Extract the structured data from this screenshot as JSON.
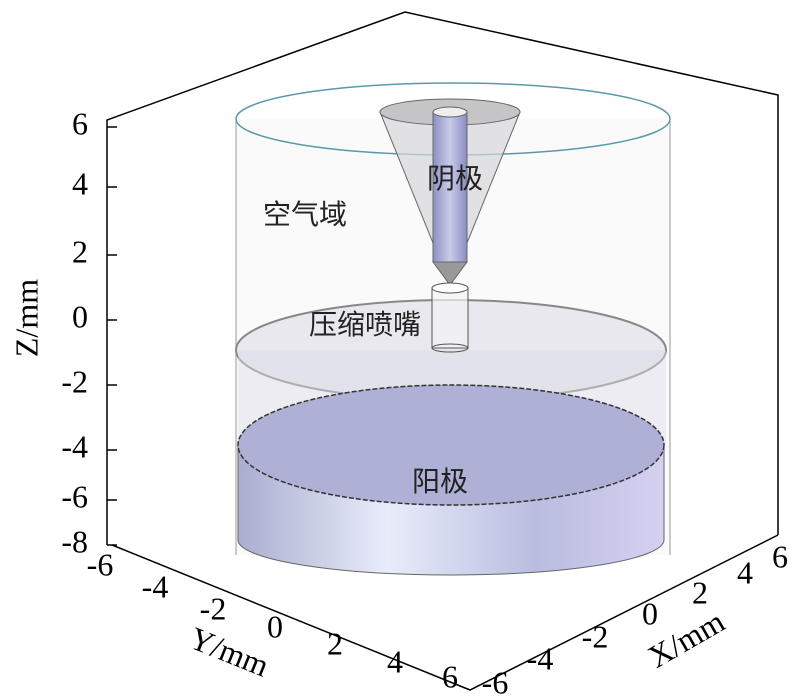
{
  "axes": {
    "z": {
      "title": "Z/mm",
      "ticks": [
        6,
        4,
        2,
        0,
        -2,
        -4,
        -6,
        -8
      ]
    },
    "y": {
      "title": "Y/mm",
      "ticks": [
        -6,
        -4,
        -2,
        0,
        2,
        4,
        6
      ]
    },
    "x": {
      "title": "X/mm",
      "ticks": [
        -6,
        -4,
        -2,
        0,
        2,
        4,
        6
      ]
    }
  },
  "labels": {
    "air": "空气域",
    "cathode": "阴极",
    "nozzle": "压缩喷嘴",
    "anode": "阳极"
  }
}
